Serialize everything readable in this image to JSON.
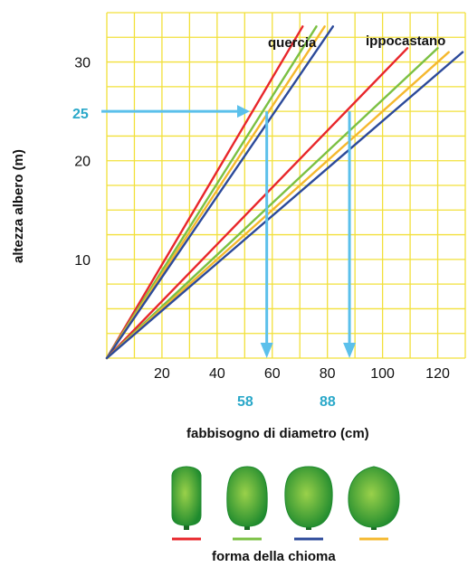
{
  "chart_data": {
    "type": "line",
    "xlabel": "fabbisogno di diametro (cm)",
    "ylabel": "altezza albero (m)",
    "xlim": [
      0,
      130
    ],
    "ylim": [
      0,
      35
    ],
    "grid": true,
    "x_ticks": [
      "20",
      "40",
      "60",
      "80",
      "100",
      "120"
    ],
    "y_ticks": [
      "10",
      "20",
      "30"
    ],
    "groups": [
      {
        "label": "quercia",
        "series": [
          {
            "color": "#e8262b",
            "x": [
              0,
              71
            ],
            "y": [
              0,
              33.6
            ]
          },
          {
            "color": "#7bc043",
            "x": [
              0,
              76
            ],
            "y": [
              0,
              33.6
            ]
          },
          {
            "color": "#f5b82e",
            "x": [
              0,
              79
            ],
            "y": [
              0,
              33.6
            ]
          },
          {
            "color": "#2c4a9a",
            "x": [
              0,
              82
            ],
            "y": [
              0,
              33.6
            ]
          }
        ]
      },
      {
        "label": "ippocastano",
        "series": [
          {
            "color": "#e8262b",
            "x": [
              0,
              109
            ],
            "y": [
              0,
              31.4
            ]
          },
          {
            "color": "#7bc043",
            "x": [
              0,
              120
            ],
            "y": [
              0,
              31.4
            ]
          },
          {
            "color": "#f5b82e",
            "x": [
              0,
              124
            ],
            "y": [
              0,
              31.0
            ]
          },
          {
            "color": "#2c4a9a",
            "x": [
              0,
              129
            ],
            "y": [
              0,
              31.0
            ]
          }
        ]
      }
    ],
    "reading_example": {
      "y_value": "25",
      "x_values": [
        "58",
        "88"
      ],
      "y": 25,
      "x": [
        58,
        88
      ],
      "arrow_color": "#5bc0eb",
      "label_color": "#2aa8c9"
    }
  },
  "legend": {
    "title": "forma della chioma",
    "items": [
      {
        "icon": "narrow-crown-icon",
        "color": "#e8262b"
      },
      {
        "icon": "oval-crown-icon",
        "color": "#7bc043"
      },
      {
        "icon": "round-crown-icon",
        "color": "#2c4a9a"
      },
      {
        "icon": "broad-crown-icon",
        "color": "#f5b82e"
      }
    ]
  },
  "colors": {
    "grid": "#f2e03a",
    "grid_bg": "#ffffff",
    "crown_dark": "#1e8a2e",
    "crown_light": "#9ad14a",
    "trunk": "#1a6a23"
  }
}
